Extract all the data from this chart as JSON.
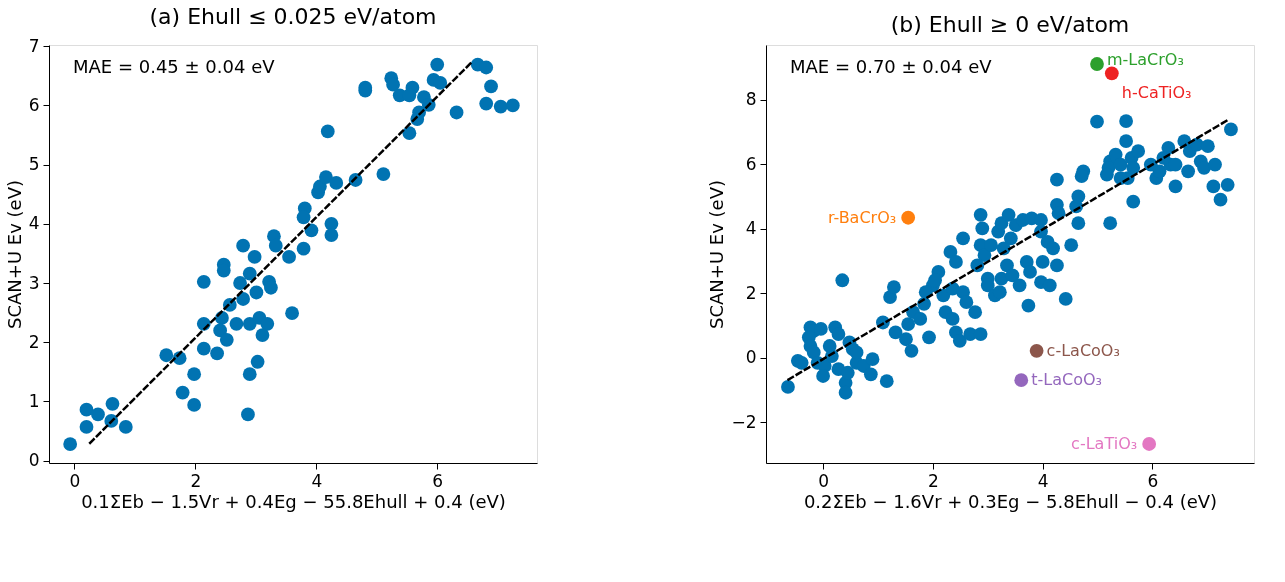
{
  "chart_data": [
    {
      "type": "scatter",
      "title": "(a) Ehull ≤ 0.025 eV/atom",
      "xlabel": "0.1ΣEb − 1.5Vr + 0.4Eg − 55.8Ehull + 0.4 (eV)",
      "ylabel": "SCAN+U Ev (eV)",
      "xlim": [
        -0.42,
        7.65
      ],
      "ylim": [
        -0.04,
        7.02
      ],
      "xticks": [
        0,
        2,
        4,
        6
      ],
      "yticks": [
        0,
        1,
        2,
        3,
        4,
        5,
        6,
        7
      ],
      "grid": false,
      "annotations": [
        "MAE = 0.45 ± 0.04 eV"
      ],
      "series": [
        {
          "marker": "circle",
          "color": "#0173b2",
          "x": [
            -0.07,
            0.2,
            0.2,
            0.39,
            0.63,
            0.61,
            0.85,
            1.52,
            1.74,
            1.98,
            1.79,
            1.98,
            2.14,
            2.14,
            2.36,
            2.14,
            2.47,
            2.47,
            2.79,
            2.98,
            2.74,
            2.9,
            3.22,
            3.25,
            3.01,
            2.79,
            2.57,
            2.44,
            2.41,
            2.52,
            2.68,
            2.9,
            3.06,
            3.19,
            3.11,
            3.03,
            2.9,
            2.87,
            3.6,
            3.3,
            3.33,
            3.55,
            3.79,
            3.92,
            3.81,
            3.79,
            4.03,
            4.06,
            4.16,
            4.33,
            4.25,
            4.25,
            4.19,
            4.65,
            5.11,
            4.81,
            4.81,
            5.24,
            5.27,
            5.38,
            5.59,
            5.54,
            5.78,
            5.86,
            5.7,
            5.54,
            5.67,
            6.0,
            5.94,
            6.05,
            6.32,
            6.67,
            6.81,
            6.89,
            6.81,
            7.05,
            7.25
          ],
          "values": [
            0.28,
            0.86,
            0.57,
            0.78,
            0.96,
            0.67,
            0.57,
            1.78,
            1.73,
            1.46,
            1.15,
            0.94,
            2.31,
            1.89,
            1.81,
            3.02,
            3.31,
            3.21,
            3.63,
            3.44,
            3.0,
            3.16,
            3.02,
            2.92,
            2.84,
            2.73,
            2.63,
            2.41,
            2.2,
            2.04,
            2.31,
            2.31,
            2.41,
            2.31,
            2.12,
            1.67,
            1.46,
            0.78,
            2.49,
            3.79,
            3.63,
            3.44,
            3.58,
            3.89,
            4.26,
            4.11,
            4.53,
            4.63,
            4.79,
            4.69,
            4.0,
            3.81,
            5.56,
            4.74,
            4.84,
            6.3,
            6.25,
            6.46,
            6.35,
            6.17,
            6.3,
            6.17,
            6.14,
            6.01,
            5.88,
            5.53,
            5.77,
            6.69,
            6.43,
            6.38,
            5.88,
            6.69,
            6.64,
            6.32,
            6.03,
            5.98,
            6.0
          ]
        },
        {
          "type": "line",
          "color": "#000000",
          "line_style": "dashed",
          "x": [
            0.26,
            6.59
          ],
          "values": [
            0.3,
            6.75
          ]
        }
      ]
    },
    {
      "type": "scatter",
      "title": "(b) Ehull ≥ 0 eV/atom",
      "xlabel": "0.2ΣEb − 1.6Vr + 0.3Eg − 5.8Ehull − 0.4 (eV)",
      "ylabel": "SCAN+U Ev (eV)",
      "xlim": [
        -1.04,
        7.85
      ],
      "ylim": [
        -3.27,
        9.7
      ],
      "xticks": [
        0,
        2,
        4,
        6
      ],
      "yticks": [
        -2,
        0,
        2,
        4,
        6,
        8
      ],
      "grid": false,
      "annotations": [
        "MAE = 0.70 ± 0.04 eV"
      ],
      "series": [
        {
          "marker": "circle",
          "color": "#0173b2",
          "x": [
            -0.64,
            -0.46,
            -0.39,
            -0.23,
            -0.17,
            -0.04,
            -0.26,
            -0.23,
            -0.17,
            -0.1,
            0.03,
            0.0,
            0.12,
            0.22,
            0.28,
            0.35,
            0.16,
            0.28,
            0.41,
            0.41,
            0.45,
            0.54,
            0.61,
            0.74,
            0.9,
            0.87,
            1.16,
            0.61,
            0.48,
            1.09,
            1.22,
            1.29,
            1.32,
            1.51,
            1.61,
            1.55,
            1.64,
            1.84,
            1.77,
            1.93,
            2.0,
            1.87,
            2.1,
            2.04,
            2.19,
            2.23,
            2.36,
            2.42,
            2.32,
            2.42,
            2.55,
            2.36,
            2.55,
            2.61,
            2.77,
            2.49,
            2.68,
            2.87,
            2.87,
            2.9,
            2.87,
            2.94,
            2.81,
            3.0,
            3.0,
            3.13,
            3.22,
            3.06,
            3.19,
            3.25,
            3.38,
            3.51,
            3.64,
            3.8,
            3.42,
            3.29,
            3.35,
            3.25,
            3.45,
            3.58,
            3.71,
            3.77,
            3.74,
            3.97,
            3.97,
            4.09,
            4.19,
            4.0,
            4.26,
            3.97,
            4.13,
            4.26,
            4.26,
            4.29,
            4.42,
            4.52,
            4.61,
            4.65,
            4.65,
            4.74,
            4.71,
            4.99,
            5.52,
            5.23,
            5.23,
            5.2,
            5.17,
            5.33,
            5.42,
            5.55,
            5.52,
            5.62,
            5.65,
            5.74,
            5.42,
            5.65,
            6.07,
            6.13,
            6.29,
            6.33,
            6.42,
            6.58,
            6.68,
            6.65,
            6.81,
            6.88,
            7.01,
            6.94,
            7.14,
            7.11,
            7.24,
            7.37,
            7.43,
            5.97,
            6.2,
            6.42
          ],
          "values": [
            -0.91,
            -0.1,
            -0.16,
            0.94,
            0.83,
            0.89,
            0.63,
            0.36,
            0.16,
            -0.16,
            -0.26,
            -0.57,
            0.36,
            0.94,
            0.73,
            2.4,
            0.05,
            -0.36,
            -0.78,
            -1.09,
            -0.47,
            0.26,
            -0.16,
            -0.26,
            -0.05,
            -0.52,
            -0.73,
            0.16,
            0.47,
            1.09,
            1.88,
            2.19,
            0.78,
            0.57,
            0.21,
            1.04,
            1.41,
            1.67,
            1.2,
            0.63,
            2.24,
            2.03,
            2.66,
            2.4,
            1.93,
            1.41,
            1.2,
            0.78,
            3.28,
            2.97,
            3.7,
            2.14,
            2.03,
            1.72,
            1.41,
            0.52,
            0.73,
            0.73,
            4.43,
            4.01,
            3.49,
            3.18,
            2.86,
            2.45,
            2.24,
            1.93,
            2.03,
            3.49,
            3.91,
            4.17,
            4.43,
            4.11,
            4.27,
            4.32,
            3.7,
            3.39,
            2.86,
            2.45,
            2.55,
            2.24,
            2.97,
            2.66,
            1.61,
            4.27,
            3.91,
            3.59,
            3.39,
            2.97,
            2.86,
            2.34,
            2.24,
            5.52,
            4.74,
            4.48,
            1.82,
            3.49,
            4.69,
            5.0,
            4.17,
            5.78,
            5.63,
            7.32,
            7.34,
            4.17,
            6.09,
            5.89,
            5.68,
            6.3,
            5.99,
            5.57,
            6.72,
            6.2,
            5.89,
            6.41,
            5.57,
            4.84,
            5.57,
            5.78,
            6.51,
            5.99,
            5.31,
            6.72,
            6.41,
            5.78,
            6.61,
            6.09,
            6.56,
            5.89,
            5.99,
            5.31,
            4.9,
            5.36,
            7.08,
            5.99,
            6.2,
            5.99
          ]
        },
        {
          "type": "line",
          "color": "#000000",
          "line_style": "dashed",
          "x": [
            -0.63,
            7.4
          ],
          "values": [
            -0.68,
            7.4
          ]
        },
        {
          "marker": "circle",
          "name": "m-LaCrO₃",
          "color": "#2ca02c",
          "x": [
            4.99
          ],
          "values": [
            9.11
          ]
        },
        {
          "marker": "circle",
          "name": "h-CaTiO₃",
          "color": "#ee2222",
          "x": [
            5.26
          ],
          "values": [
            8.82
          ]
        },
        {
          "marker": "circle",
          "name": "r-BaCrO₃",
          "color": "#ff7f0e",
          "x": [
            1.55
          ],
          "values": [
            4.34
          ]
        },
        {
          "marker": "circle",
          "name": "c-LaCoO₃",
          "color": "#8c564b",
          "x": [
            3.89
          ],
          "values": [
            0.21
          ]
        },
        {
          "marker": "circle",
          "name": "t-LaCoO₃",
          "color": "#9467bd",
          "x": [
            3.61
          ],
          "values": [
            -0.7
          ]
        },
        {
          "marker": "circle",
          "name": "c-LaTiO₃",
          "color": "#e377c2",
          "x": [
            5.94
          ],
          "values": [
            -2.68
          ]
        }
      ]
    }
  ]
}
